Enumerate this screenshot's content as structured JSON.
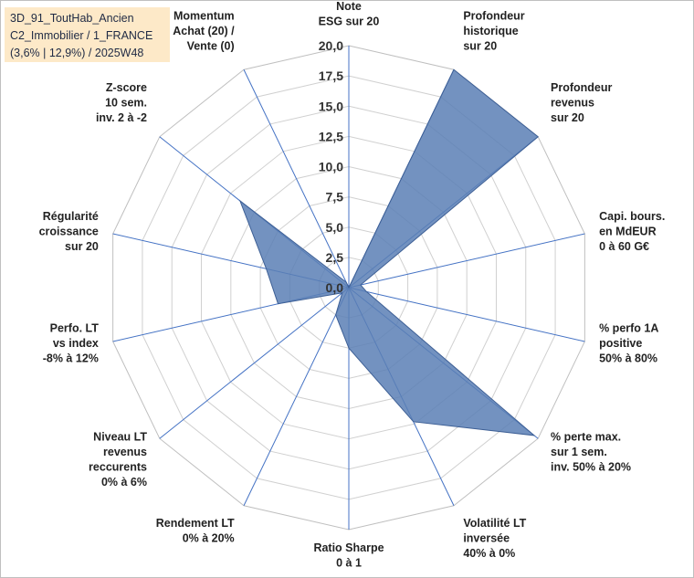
{
  "chart_data": {
    "type": "radar",
    "title_lines": [
      "3D_91_ToutHab_Ancien",
      "C2_Immobilier / 1_FRANCE",
      "(3,6% | 12,9%) / 2025W48"
    ],
    "rlim": [
      0,
      20
    ],
    "ticks": [
      "0,0",
      "2,5",
      "5,0",
      "7,5",
      "10,0",
      "12,5",
      "15,0",
      "17,5",
      "20,0"
    ],
    "grid": true,
    "fill_color": "#5b7fb5",
    "fill_opacity": 0.85,
    "grid_color": "#d0d0d0",
    "spoke_color": "#4472c4",
    "axes": [
      {
        "label": [
          "Note",
          "ESG sur 20"
        ],
        "value": 0
      },
      {
        "label": [
          "Profondeur",
          "historique",
          "sur 20"
        ],
        "value": 20
      },
      {
        "label": [
          "Profondeur",
          "revenus",
          "sur 20"
        ],
        "value": 20
      },
      {
        "label": [
          "Capi. bours.",
          "en MdEUR",
          "0 à 60 G€"
        ],
        "value": 1
      },
      {
        "label": [
          "% perfo 1A",
          "positive",
          "50% à 80%"
        ],
        "value": 1.5
      },
      {
        "label": [
          "% perte max.",
          "sur 1 sem.",
          "inv. 50% à 20%"
        ],
        "value": 19.6
      },
      {
        "label": [
          "Volatilité LT",
          "inversée",
          "40% à 0%"
        ],
        "value": 12.3
      },
      {
        "label": [
          "Ratio Sharpe",
          "0 à 1"
        ],
        "value": 5
      },
      {
        "label": [
          "Rendement LT",
          "0% à 20%"
        ],
        "value": 2.5
      },
      {
        "label": [
          "Niveau LT",
          "revenus",
          "reccurents",
          "0% à 6%"
        ],
        "value": 0.7
      },
      {
        "label": [
          "Perfo. LT",
          "vs index",
          "-8% à 12%"
        ],
        "value": 6
      },
      {
        "label": [
          "Régularité",
          "croissance",
          "sur 20"
        ],
        "value": 7
      },
      {
        "label": [
          "Z-score",
          "10 sem.",
          "inv. 2 à -2"
        ],
        "value": 11.5
      },
      {
        "label": [
          "Momentum",
          "Achat (20) /",
          "Vente (0)"
        ],
        "value": 0.5
      }
    ]
  }
}
